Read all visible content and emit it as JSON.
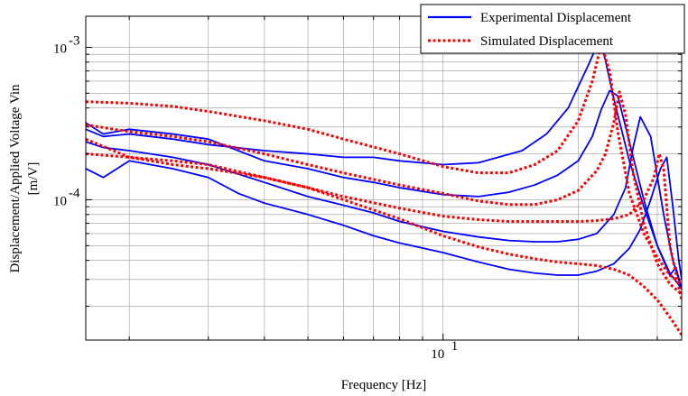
{
  "chart_data": {
    "type": "line",
    "title": "",
    "xlabel": "Frequency [Hz]",
    "ylabel": "Displacement/Applied Voltage Vin",
    "ylabel_unit": "[m/V]",
    "x_scale": "log",
    "y_scale": "log",
    "xlim": [
      1.6,
      34
    ],
    "ylim": [
      1.2e-05,
      0.0016
    ],
    "grid": "on (major and minor)",
    "legend_placement": "top-right",
    "x_tick_labels": [
      {
        "value": 10,
        "base": "10",
        "exponent": "1"
      }
    ],
    "y_tick_labels": [
      {
        "value": 0.0001,
        "base": "10",
        "exponent": "-4"
      },
      {
        "value": 0.001,
        "base": "10",
        "exponent": "-3"
      }
    ],
    "series": [
      {
        "name": "Experimental Displacement",
        "color": "#0000ff",
        "style": "solid",
        "curves": [
          {
            "x": [
              1.6,
              1.75,
              2,
              2.5,
              3,
              4,
              5,
              6,
              7,
              8,
              10,
              12,
              15,
              17,
              19,
              21,
              22,
              22.5,
              23,
              24,
              26,
              28,
              30,
              32,
              33,
              34
            ],
            "y": [
              0.00029,
              0.00026,
              0.00027,
              0.00025,
              0.00023,
              0.00021,
              0.0002,
              0.00019,
              0.00019,
              0.00018,
              0.00017,
              0.000175,
              0.00021,
              0.00027,
              0.0004,
              0.00075,
              0.00102,
              0.00104,
              0.00082,
              0.00046,
              0.00018,
              9e-05,
              5e-05,
              3.2e-05,
              3.6e-05,
              2.6e-05
            ]
          },
          {
            "x": [
              1.6,
              1.75,
              2,
              2.5,
              3,
              4,
              5,
              6,
              7,
              8,
              10,
              12,
              14,
              16,
              18,
              20,
              21.5,
              22.5,
              23.5,
              24.5,
              26,
              28,
              30,
              32,
              34
            ],
            "y": [
              0.00032,
              0.00027,
              0.00029,
              0.00027,
              0.00025,
              0.00018,
              0.00016,
              0.00014,
              0.00013,
              0.00012,
              0.000108,
              0.000105,
              0.000112,
              0.000125,
              0.000145,
              0.00018,
              0.00026,
              0.00039,
              0.00052,
              0.00048,
              0.00024,
              0.0001,
              5e-05,
              3.3e-05,
              2.6e-05
            ]
          },
          {
            "x": [
              1.6,
              1.75,
              2,
              2.5,
              3,
              4,
              5,
              6,
              7,
              8,
              10,
              12,
              14,
              16,
              18,
              20,
              22,
              24,
              25.5,
              26.5,
              27.5,
              29,
              31,
              32.5,
              34
            ],
            "y": [
              0.00024,
              0.00022,
              0.00021,
              0.00019,
              0.00017,
              0.00013,
              0.000105,
              9.2e-05,
              8.2e-05,
              7.2e-05,
              6.2e-05,
              5.7e-05,
              5.4e-05,
              5.3e-05,
              5.3e-05,
              5.5e-05,
              6e-05,
              8e-05,
              0.00012,
              0.00022,
              0.00035,
              0.00026,
              8e-05,
              4e-05,
              2.6e-05
            ]
          },
          {
            "x": [
              1.6,
              1.75,
              2,
              2.5,
              3,
              3.5,
              4,
              5,
              6,
              7,
              8,
              10,
              12,
              14,
              16,
              18,
              20,
              22,
              24,
              26,
              27.5,
              29,
              30.5,
              31.5,
              32.5,
              33.5,
              34
            ],
            "y": [
              0.00016,
              0.00014,
              0.00018,
              0.00016,
              0.00014,
              0.00011,
              9.5e-05,
              8e-05,
              6.8e-05,
              5.8e-05,
              5.2e-05,
              4.5e-05,
              3.9e-05,
              3.5e-05,
              3.3e-05,
              3.2e-05,
              3.2e-05,
              3.4e-05,
              3.8e-05,
              4.8e-05,
              6.4e-05,
              0.0001,
              0.00016,
              0.00019,
              9e-05,
              4e-05,
              3e-05
            ]
          }
        ]
      },
      {
        "name": "Simulated Displacement",
        "color": "#ff0000",
        "style": "dotted",
        "curves": [
          {
            "x": [
              1.6,
              2,
              2.5,
              3,
              4,
              5,
              6,
              8,
              10,
              12,
              14,
              16,
              18,
              20,
              21.5,
              22.5,
              23.5,
              24.5,
              26,
              28,
              30,
              32,
              34
            ],
            "y": [
              0.00044,
              0.00043,
              0.00041,
              0.00038,
              0.00033,
              0.00029,
              0.00025,
              0.0002,
              0.000165,
              0.00015,
              0.00015,
              0.00017,
              0.00021,
              0.00033,
              0.0006,
              0.00104,
              0.0007,
              0.00028,
              0.00011,
              6e-05,
              4.2e-05,
              3.2e-05,
              2.8e-05
            ]
          },
          {
            "x": [
              1.6,
              2,
              2.5,
              3,
              4,
              5,
              6,
              8,
              10,
              12,
              14,
              16,
              18,
              20,
              22,
              23,
              24,
              24.7,
              25.5,
              26.5,
              28,
              30,
              32,
              34
            ],
            "y": [
              0.00031,
              0.00028,
              0.00026,
              0.00024,
              0.0002,
              0.00017,
              0.00015,
              0.000125,
              0.00011,
              9.8e-05,
              9.3e-05,
              9.3e-05,
              0.0001,
              0.000115,
              0.000155,
              0.0002,
              0.00032,
              0.00051,
              0.00036,
              0.00015,
              7e-05,
              3.8e-05,
              2.8e-05,
              2.4e-05
            ]
          },
          {
            "x": [
              1.6,
              2,
              2.5,
              3,
              4,
              5,
              6,
              8,
              10,
              12,
              14,
              16,
              18,
              20,
              22,
              24,
              26,
              28,
              29.5,
              30.3,
              31,
              32,
              34
            ],
            "y": [
              0.0002,
              0.00019,
              0.00018,
              0.00017,
              0.00014,
              0.00012,
              0.000105,
              8.8e-05,
              7.8e-05,
              7.4e-05,
              7.2e-05,
              7.2e-05,
              7.2e-05,
              7.2e-05,
              7.3e-05,
              7.5e-05,
              8e-05,
              0.0001,
              0.00014,
              0.0002,
              0.00016,
              5e-05,
              2.2e-05
            ]
          },
          {
            "x": [
              1.6,
              2,
              2.5,
              3,
              4,
              5,
              6,
              8,
              10,
              12,
              14,
              16,
              18,
              20,
              22,
              24,
              26,
              28,
              30,
              32,
              34
            ],
            "y": [
              0.00025,
              0.00019,
              0.00017,
              0.00016,
              0.00014,
              0.00012,
              0.0001,
              7.5e-05,
              5.8e-05,
              4.9e-05,
              4.4e-05,
              4.1e-05,
              3.9e-05,
              3.8e-05,
              3.7e-05,
              3.5e-05,
              3.2e-05,
              2.7e-05,
              2.2e-05,
              1.7e-05,
              1.3e-05
            ]
          }
        ]
      }
    ]
  }
}
